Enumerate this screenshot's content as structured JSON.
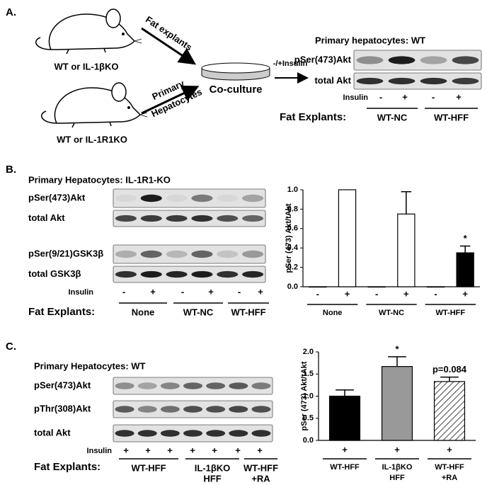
{
  "panel_a": {
    "label": "A.",
    "mouse_1": "WT or IL-1βKO",
    "mouse_2": "WT or IL-1R1KO",
    "arrow_1": "Fat explants",
    "arrow_2": [
      "Primary",
      "Hepatocytes"
    ],
    "coculture": "Co-culture",
    "insulin_arrow": "-/+Insulin",
    "blot_title": "Primary hepatocytes: WT",
    "rows": [
      "pSer(473)Akt",
      "total Akt"
    ],
    "insulin_label": "Insulin",
    "insulin_signs": [
      "-",
      "+",
      "-",
      "+"
    ],
    "explants_label": "Fat Explants:",
    "groups": [
      "WT-NC",
      "WT-HFF"
    ]
  },
  "panel_b": {
    "label": "B.",
    "blot_title": "Primary Hepatocytes: IL-1R1-KO",
    "rows": [
      "pSer(473)Akt",
      "total Akt",
      "pSer(9/21)GSK3β",
      "total GSK3β"
    ],
    "insulin_label": "Insulin",
    "insulin_signs": [
      "-",
      "+",
      "-",
      "+",
      "-",
      "+"
    ],
    "explants_label": "Fat Explants:",
    "groups": [
      "None",
      "WT-NC",
      "WT-HFF"
    ]
  },
  "panel_c": {
    "label": "C.",
    "blot_title": "Primary Hepatocytes: WT",
    "rows": [
      "pSer(473)Akt",
      "pThr(308)Akt",
      "total Akt"
    ],
    "insulin_label": "Insulin",
    "insulin_signs": [
      "+",
      "+",
      "+",
      "+",
      "+",
      "+",
      "+"
    ],
    "explants_label": "Fat Explants:",
    "groups": [
      [
        "WT-HFF"
      ],
      [
        "IL-1βKO",
        "HFF"
      ],
      [
        "WT-HFF",
        "+RA"
      ]
    ]
  },
  "chart_data": [
    {
      "type": "bar",
      "ylabel": "pSer (473) Akt/tAkt",
      "categories": [
        "-",
        "+",
        "-",
        "+",
        "-",
        "+"
      ],
      "groups": [
        [
          "None"
        ],
        [
          "WT-NC"
        ],
        [
          "WT-HFF"
        ]
      ],
      "values": [
        0,
        1.0,
        0,
        0.75,
        0,
        0.35
      ],
      "errors": [
        null,
        null,
        null,
        0.23,
        null,
        0.07
      ],
      "colors": [
        "#ffffff",
        "#ffffff",
        "#ffffff",
        "#ffffff",
        "#ffffff",
        "#000000"
      ],
      "hatch": [
        false,
        false,
        false,
        false,
        false,
        false
      ],
      "value_annotations": [
        null,
        null,
        null,
        null,
        null,
        "*"
      ],
      "ylim": [
        0,
        1.0
      ],
      "yticks": [
        {
          "value": 0,
          "label": "0.0"
        },
        0.2,
        0.4,
        0.6,
        0.8,
        {
          "value": 1,
          "label": "1.0"
        }
      ]
    },
    {
      "type": "bar",
      "ylabel": "pSer (473) Akt/tAkt",
      "categories": [
        "+",
        "+",
        "+"
      ],
      "groups": [
        [
          "WT-HFF"
        ],
        [
          "IL-1βKO",
          "HFF"
        ],
        [
          "WT-HFF",
          "+RA"
        ]
      ],
      "values": [
        1.0,
        1.67,
        1.33
      ],
      "errors": [
        0.14,
        0.22,
        0.1
      ],
      "colors": [
        "#000000",
        "#999999",
        "#ffffff"
      ],
      "hatch": [
        false,
        false,
        true
      ],
      "value_annotations": [
        null,
        "*",
        "p=0.084"
      ],
      "ylim": [
        0,
        2.0
      ],
      "yticks": [
        {
          "value": 0,
          "label": "0.0"
        },
        0.5,
        {
          "value": 1,
          "label": "1.0"
        },
        1.5,
        {
          "value": 2,
          "label": "2.0"
        }
      ]
    }
  ]
}
